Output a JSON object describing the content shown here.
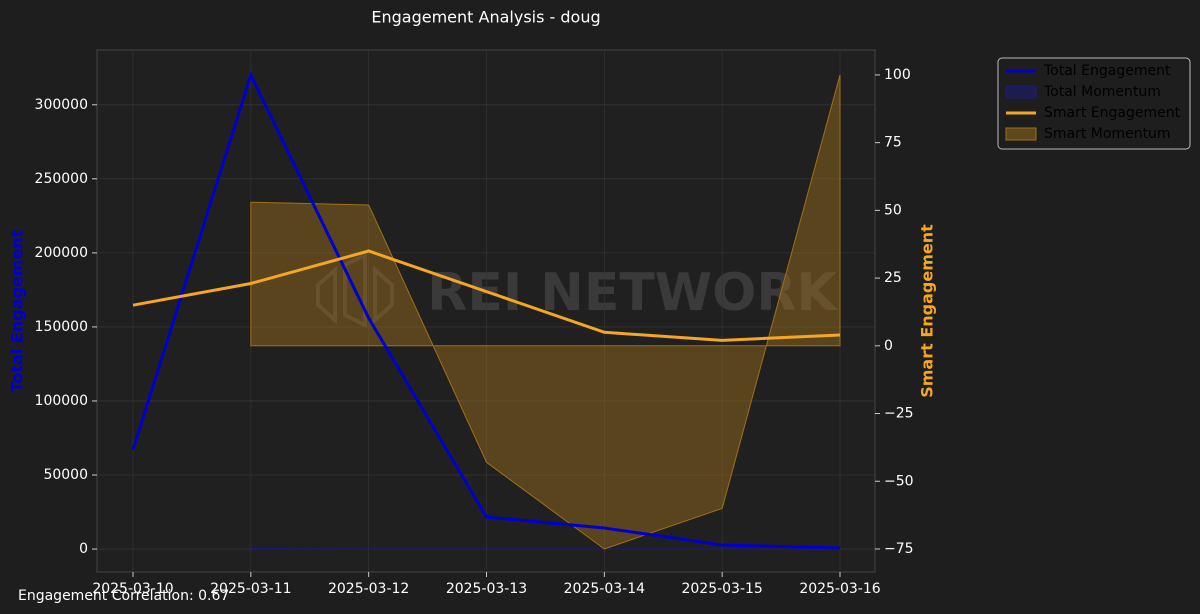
{
  "chart_data": {
    "type": "line",
    "title": "Engagement Analysis - doug",
    "watermark": "REI NETWORK",
    "footer": "Engagement Correlation: 0.67",
    "ylabel": "Total Engagement",
    "y2label": "Smart Engagement",
    "ylabel_color": "#0000cc",
    "y2label_color": "#f5a623",
    "categories": [
      "2025-03-10",
      "2025-03-11",
      "2025-03-12",
      "2025-03-13",
      "2025-03-14",
      "2025-03-15",
      "2025-03-16"
    ],
    "ylim": [
      -15500,
      337000
    ],
    "yticks": [
      0,
      50000,
      100000,
      150000,
      200000,
      250000,
      300000
    ],
    "y2lim": [
      -83.5,
      109.2
    ],
    "y2ticks": [
      {
        "value": -75,
        "label": "−75"
      },
      {
        "value": -50,
        "label": "−50"
      },
      {
        "value": -25,
        "label": "−25"
      },
      0,
      25,
      50,
      75,
      100
    ],
    "grid": true,
    "legend": "outside-upper-right",
    "series": [
      {
        "name": "Total Engagement",
        "style": "line",
        "axis": "y",
        "color": "#0000cc",
        "values": [
          67000,
          320000,
          156000,
          21600,
          14200,
          2700,
          700
        ]
      },
      {
        "name": "Total Momentum",
        "style": "area",
        "axis": "y",
        "color": "#1a1a80",
        "values": [
          null,
          378,
          -51,
          -86,
          -34,
          -81,
          -74
        ]
      },
      {
        "name": "Smart Engagement",
        "style": "line",
        "axis": "y2",
        "color": "#f5a623",
        "values": [
          15,
          23,
          35,
          20,
          5,
          2,
          4
        ]
      },
      {
        "name": "Smart Momentum",
        "style": "area",
        "axis": "y2",
        "color": "#a0701a",
        "values": [
          null,
          53,
          52,
          -43,
          -75,
          -60,
          100
        ]
      }
    ]
  }
}
